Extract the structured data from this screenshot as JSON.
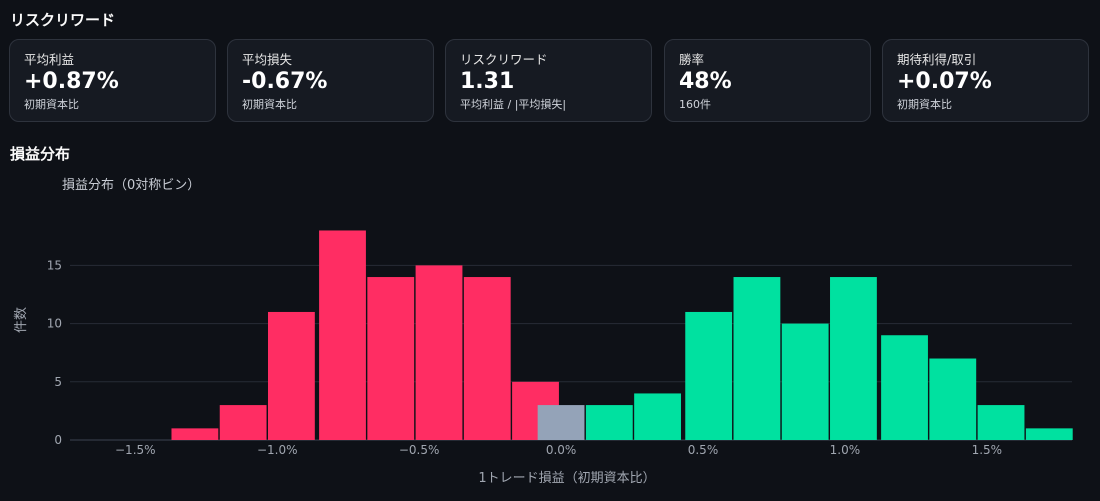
{
  "sections": {
    "risk_reward_title": "リスクリワード",
    "pnl_dist_title": "損益分布"
  },
  "cards": [
    {
      "label": "平均利益",
      "value": "+0.87%",
      "sub": "初期資本比"
    },
    {
      "label": "平均損失",
      "value": "-0.67%",
      "sub": "初期資本比"
    },
    {
      "label": "リスクリワード",
      "value": "1.31",
      "sub": "平均利益 / |平均損失|"
    },
    {
      "label": "勝率",
      "value": "48%",
      "sub": "160件"
    },
    {
      "label": "期待利得/取引",
      "value": "+0.07%",
      "sub": "初期資本比"
    }
  ],
  "chart_data": {
    "type": "bar",
    "title": "損益分布（0対称ビン）",
    "xlabel": "1トレード損益（初期資本比）",
    "ylabel": "件数",
    "x_ticks": [
      -1.5,
      -1.0,
      -0.5,
      0.0,
      0.5,
      1.0,
      1.5
    ],
    "x_tick_labels": [
      "−1.5%",
      "−1.0%",
      "−0.5%",
      "0.0%",
      "0.5%",
      "1.0%",
      "1.5%"
    ],
    "y_ticks": [
      0,
      5,
      10,
      15
    ],
    "ylim": [
      0,
      18.9
    ],
    "xlim": [
      -1.73,
      1.8
    ],
    "grid": true,
    "bin_width": 0.172,
    "colors": {
      "loss": "#ff2d63",
      "zero": "#94a3b8",
      "win": "#00e1a0"
    },
    "bins": [
      {
        "x": -1.29,
        "count": 1,
        "kind": "loss"
      },
      {
        "x": -1.12,
        "count": 3,
        "kind": "loss"
      },
      {
        "x": -0.95,
        "count": 11,
        "kind": "loss"
      },
      {
        "x": -0.77,
        "count": 18,
        "kind": "loss"
      },
      {
        "x": -0.6,
        "count": 14,
        "kind": "loss"
      },
      {
        "x": -0.43,
        "count": 15,
        "kind": "loss"
      },
      {
        "x": -0.26,
        "count": 14,
        "kind": "loss"
      },
      {
        "x": -0.09,
        "count": 5,
        "kind": "loss"
      },
      {
        "x": 0.0,
        "count": 3,
        "kind": "zero"
      },
      {
        "x": 0.17,
        "count": 3,
        "kind": "win"
      },
      {
        "x": 0.34,
        "count": 4,
        "kind": "win"
      },
      {
        "x": 0.52,
        "count": 11,
        "kind": "win"
      },
      {
        "x": 0.69,
        "count": 14,
        "kind": "win"
      },
      {
        "x": 0.86,
        "count": 10,
        "kind": "win"
      },
      {
        "x": 1.03,
        "count": 14,
        "kind": "win"
      },
      {
        "x": 1.21,
        "count": 9,
        "kind": "win"
      },
      {
        "x": 1.38,
        "count": 7,
        "kind": "win"
      },
      {
        "x": 1.55,
        "count": 3,
        "kind": "win"
      },
      {
        "x": 1.72,
        "count": 1,
        "kind": "win"
      }
    ]
  }
}
